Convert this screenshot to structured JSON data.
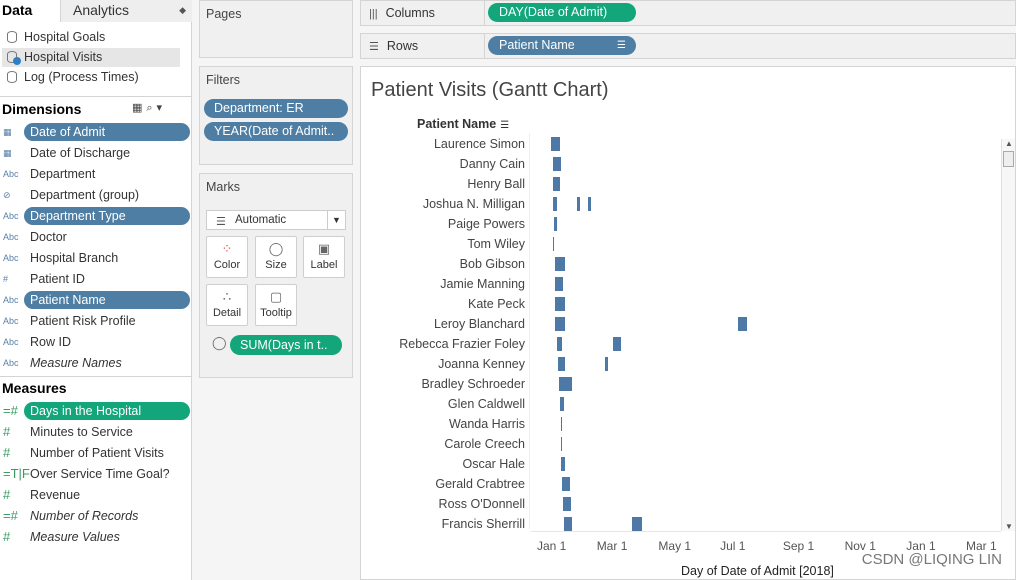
{
  "tabs": {
    "data": "Data",
    "analytics": "Analytics"
  },
  "datasources": [
    "Hospital Goals",
    "Hospital Visits",
    "Log (Process Times)"
  ],
  "dimensions_label": "Dimensions",
  "dimensions": [
    {
      "label": "Date of Admit",
      "type": "date",
      "pill": true
    },
    {
      "label": "Date of Discharge",
      "type": "date"
    },
    {
      "label": "Department",
      "type": "Abc"
    },
    {
      "label": "Department (group)",
      "type": "clip"
    },
    {
      "label": "Department Type",
      "type": "Abc",
      "pill": true
    },
    {
      "label": "Doctor",
      "type": "Abc"
    },
    {
      "label": "Hospital Branch",
      "type": "Abc"
    },
    {
      "label": "Patient ID",
      "type": "#"
    },
    {
      "label": "Patient Name",
      "type": "Abc",
      "pill": true
    },
    {
      "label": "Patient Risk Profile",
      "type": "Abc"
    },
    {
      "label": "Row ID",
      "type": "Abc"
    },
    {
      "label": "Measure Names",
      "type": "Abc",
      "italic": true
    }
  ],
  "measures_label": "Measures",
  "measures": [
    {
      "label": "Days in the Hospital",
      "type": "=#",
      "pill": true
    },
    {
      "label": "Minutes to Service",
      "type": "#"
    },
    {
      "label": "Number of Patient Visits",
      "type": "#"
    },
    {
      "label": "Over Service Time Goal?",
      "type": "=T|F"
    },
    {
      "label": "Revenue",
      "type": "#"
    },
    {
      "label": "Number of Records",
      "type": "=#",
      "italic": true
    },
    {
      "label": "Measure Values",
      "type": "#",
      "italic": true
    }
  ],
  "pages": {
    "title": "Pages"
  },
  "filters": {
    "title": "Filters",
    "items": [
      "Department: ER",
      "YEAR(Date of Admit.."
    ]
  },
  "marks": {
    "title": "Marks",
    "type": "Automatic",
    "buttons": [
      "Color",
      "Size",
      "Label",
      "Detail",
      "Tooltip"
    ],
    "size_pill": "SUM(Days in t.."
  },
  "columns": {
    "label": "Columns",
    "pill": "DAY(Date of Admit)"
  },
  "rows": {
    "label": "Rows",
    "pill": "Patient Name"
  },
  "view": {
    "title": "Patient Visits (Gantt Chart)",
    "row_header": "Patient Name",
    "x_axis_label": "Day of Date of Admit [2018]"
  },
  "watermark": "CSDN @LIQING LIN",
  "colors": {
    "bar": "#4e79a7",
    "dim_pill": "#4e7ea3",
    "measure_pill": "#12a67a"
  },
  "chart_data": {
    "type": "gantt",
    "title": "Patient Visits (Gantt Chart)",
    "xlabel": "Day of Date of Admit [2018]",
    "ylabel": "Patient Name",
    "x_ticks": [
      "Jan 1",
      "Mar 1",
      "May 1",
      "Jul 1",
      "Sep 1",
      "Nov 1",
      "Jan 1",
      "Mar 1"
    ],
    "x_tick_days": [
      0,
      59,
      120,
      181,
      243,
      304,
      365,
      424
    ],
    "rows": [
      {
        "name": "Laurence Simon",
        "bars": [
          [
            0,
            9
          ]
        ]
      },
      {
        "name": "Danny Cain",
        "bars": [
          [
            2,
            8
          ]
        ]
      },
      {
        "name": "Henry Ball",
        "bars": [
          [
            2,
            7
          ]
        ]
      },
      {
        "name": "Joshua N. Milligan",
        "bars": [
          [
            2,
            4
          ],
          [
            26,
            3
          ],
          [
            37,
            3
          ]
        ]
      },
      {
        "name": "Paige Powers",
        "bars": [
          [
            3,
            3
          ]
        ]
      },
      {
        "name": "Tom Wiley",
        "bars": [
          [
            2,
            1
          ]
        ]
      },
      {
        "name": "Bob Gibson",
        "bars": [
          [
            4,
            10
          ]
        ]
      },
      {
        "name": "Jamie Manning",
        "bars": [
          [
            4,
            8
          ]
        ]
      },
      {
        "name": "Kate Peck",
        "bars": [
          [
            4,
            10
          ]
        ]
      },
      {
        "name": "Leroy Blanchard",
        "bars": [
          [
            4,
            10
          ],
          [
            185,
            9
          ]
        ]
      },
      {
        "name": "Rebecca Frazier Foley",
        "bars": [
          [
            6,
            5
          ],
          [
            61,
            8
          ]
        ]
      },
      {
        "name": "Joanna Kenney",
        "bars": [
          [
            7,
            7
          ],
          [
            53,
            3
          ]
        ]
      },
      {
        "name": "Bradley Schroeder",
        "bars": [
          [
            8,
            13
          ]
        ]
      },
      {
        "name": "Glen Caldwell",
        "bars": [
          [
            9,
            4
          ]
        ]
      },
      {
        "name": "Wanda Harris",
        "bars": [
          [
            10,
            1
          ]
        ]
      },
      {
        "name": "Carole Creech",
        "bars": [
          [
            10,
            1
          ]
        ]
      },
      {
        "name": "Oscar Hale",
        "bars": [
          [
            10,
            4
          ]
        ]
      },
      {
        "name": "Gerald Crabtree",
        "bars": [
          [
            11,
            8
          ]
        ]
      },
      {
        "name": "Ross O'Donnell",
        "bars": [
          [
            12,
            8
          ]
        ]
      },
      {
        "name": "Francis Sherrill",
        "bars": [
          [
            13,
            8
          ],
          [
            80,
            10
          ]
        ]
      }
    ]
  }
}
